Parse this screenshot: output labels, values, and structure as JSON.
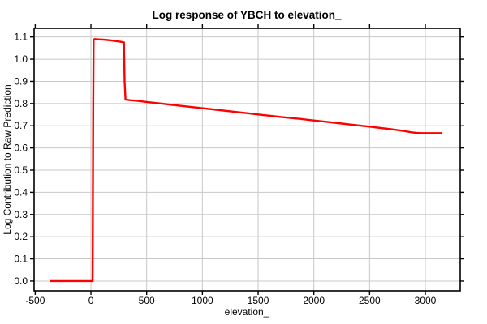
{
  "chart_data": {
    "type": "line",
    "title": "Log response of YBCH to elevation_",
    "xlabel": "elevation_",
    "ylabel": "Log Contribution to Raw Prediction",
    "xlim": [
      -510,
      3313
    ],
    "ylim": [
      -0.044,
      1.139
    ],
    "x_ticks": [
      -500,
      0,
      500,
      1000,
      1500,
      2000,
      2500,
      3000
    ],
    "x_tick_labels": [
      "-500",
      "0",
      "500",
      "1000",
      "1500",
      "2000",
      "2500",
      "3000"
    ],
    "y_ticks": [
      0.0,
      0.1,
      0.2,
      0.3,
      0.4,
      0.5,
      0.6,
      0.7,
      0.8,
      0.9,
      1.0,
      1.1
    ],
    "y_tick_labels": [
      "0.0",
      "0.1",
      "0.2",
      "0.3",
      "0.4",
      "0.5",
      "0.6",
      "0.7",
      "0.8",
      "0.9",
      "1.0",
      "1.1"
    ],
    "grid": true,
    "grid_color": "#c8c8c8",
    "axis_color": "#000000",
    "background_color": "#ffffff",
    "legend": "none",
    "series": [
      {
        "name": "YBCH",
        "color": "#ff0000",
        "line_width": 2.4,
        "points": [
          [
            -372,
            0.0
          ],
          [
            -300,
            0.0
          ],
          [
            -200,
            0.0
          ],
          [
            -100,
            0.0
          ],
          [
            -30,
            0.0
          ],
          [
            15,
            0.0
          ],
          [
            20,
            0.75
          ],
          [
            24,
            1.088
          ],
          [
            35,
            1.09
          ],
          [
            70,
            1.089
          ],
          [
            110,
            1.088
          ],
          [
            150,
            1.086
          ],
          [
            190,
            1.084
          ],
          [
            230,
            1.081
          ],
          [
            270,
            1.078
          ],
          [
            296,
            1.075
          ],
          [
            302,
            0.9
          ],
          [
            310,
            0.818
          ],
          [
            350,
            0.815
          ],
          [
            420,
            0.812
          ],
          [
            500,
            0.807
          ],
          [
            625,
            0.8
          ],
          [
            750,
            0.793
          ],
          [
            875,
            0.786
          ],
          [
            1000,
            0.779
          ],
          [
            1125,
            0.772
          ],
          [
            1250,
            0.765
          ],
          [
            1375,
            0.758
          ],
          [
            1500,
            0.751
          ],
          [
            1625,
            0.744
          ],
          [
            1750,
            0.737
          ],
          [
            1875,
            0.731
          ],
          [
            2000,
            0.724
          ],
          [
            2125,
            0.717
          ],
          [
            2250,
            0.71
          ],
          [
            2375,
            0.703
          ],
          [
            2500,
            0.696
          ],
          [
            2600,
            0.69
          ],
          [
            2700,
            0.684
          ],
          [
            2800,
            0.677
          ],
          [
            2870,
            0.671
          ],
          [
            2920,
            0.668
          ],
          [
            2970,
            0.667
          ],
          [
            3050,
            0.667
          ],
          [
            3150,
            0.667
          ]
        ]
      }
    ]
  }
}
